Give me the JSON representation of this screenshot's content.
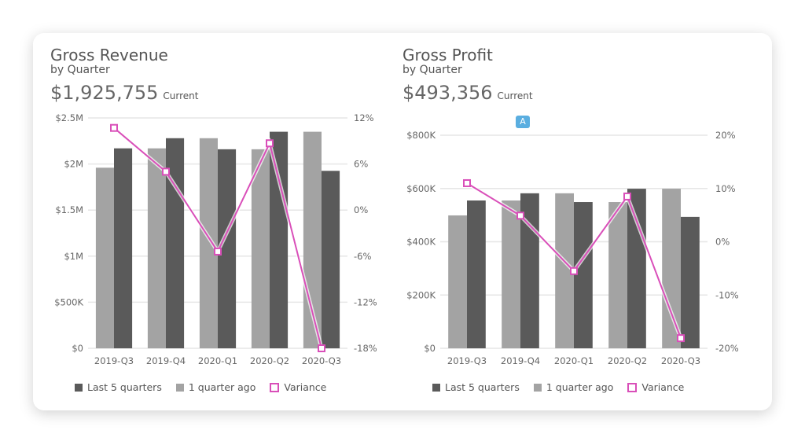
{
  "colors": {
    "last5": "#5a5a5a",
    "ago": "#a3a3a3",
    "variance": "#d94fb9",
    "grid": "#e6e6e6",
    "annotation": "#5aaee0"
  },
  "legend": {
    "last5": "Last 5 quarters",
    "ago": "1 quarter ago",
    "variance": "Variance"
  },
  "annotation": {
    "label": "A"
  },
  "chart_data": [
    {
      "type": "bar",
      "title": "Gross Revenue",
      "subtitle": "by Quarter",
      "kpi": {
        "value": "$1,925,755",
        "label": "Current"
      },
      "categories": [
        "2019-Q3",
        "2019-Q4",
        "2020-Q1",
        "2020-Q2",
        "2020-Q3"
      ],
      "ylim": [
        0,
        2500000
      ],
      "y2lim": [
        -18,
        12
      ],
      "yticks": [
        "$0",
        "$500K",
        "$1M",
        "$1.5M",
        "$2M",
        "$2.5M"
      ],
      "y2ticks": [
        "-18%",
        "-12%",
        "-6%",
        "0%",
        "6%",
        "12%"
      ],
      "series": [
        {
          "name": "1 quarter ago",
          "kind": "bar",
          "values": [
            1960000,
            2170000,
            2280000,
            2160000,
            2350000
          ]
        },
        {
          "name": "Last 5 quarters",
          "kind": "bar",
          "values": [
            2170000,
            2280000,
            2160000,
            2350000,
            1925755
          ]
        },
        {
          "name": "Variance",
          "kind": "line",
          "axis": "right",
          "values": [
            10.7,
            5.0,
            -5.4,
            8.7,
            -18.0
          ]
        }
      ],
      "grid": true,
      "legend_position": "bottom"
    },
    {
      "type": "bar",
      "title": "Gross Profit",
      "subtitle": "by Quarter",
      "kpi": {
        "value": "$493,356",
        "label": "Current"
      },
      "categories": [
        "2019-Q3",
        "2019-Q4",
        "2020-Q1",
        "2020-Q2",
        "2020-Q3"
      ],
      "ylim": [
        0,
        800000
      ],
      "y2lim": [
        -20,
        20
      ],
      "yticks": [
        "$0",
        "$200K",
        "$400K",
        "$600K",
        "$800K"
      ],
      "y2ticks": [
        "-20%",
        "-10%",
        "0%",
        "10%",
        "20%"
      ],
      "series": [
        {
          "name": "1 quarter ago",
          "kind": "bar",
          "values": [
            499000,
            555000,
            582000,
            549000,
            599000
          ]
        },
        {
          "name": "Last 5 quarters",
          "kind": "bar",
          "values": [
            555000,
            582000,
            549000,
            599000,
            493356
          ]
        },
        {
          "name": "Variance",
          "kind": "line",
          "axis": "right",
          "values": [
            11.0,
            4.9,
            -5.5,
            8.5,
            -18.1
          ]
        }
      ],
      "grid": true,
      "legend_position": "bottom"
    }
  ]
}
